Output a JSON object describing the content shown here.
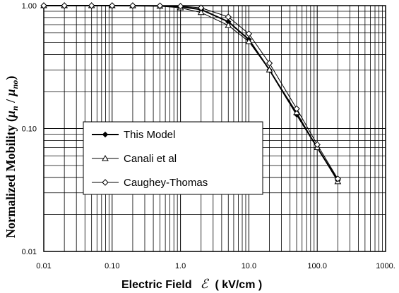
{
  "chart_data": {
    "type": "line",
    "xlabel": "Electric Field",
    "xlabel_symbol": "ℰ",
    "xlabel_unit": "( kV/cm )",
    "ylabel": "Normalized Mobility (",
    "ylabel_mu_n": "μ",
    "ylabel_sub_n": "n",
    "ylabel_slash": " / ",
    "ylabel_mu_n0": "μ",
    "ylabel_sub_n0": "no",
    "ylabel_close": ")",
    "x_scale": "log",
    "y_scale": "log",
    "xlim": [
      0.01,
      1000
    ],
    "ylim": [
      0.01,
      1.0
    ],
    "x_tick_labels": [
      "0.01",
      "0.10",
      "1.0",
      "10.0",
      "100.0",
      "1000."
    ],
    "y_tick_labels": [
      "0.01",
      "0.10",
      "1.00"
    ],
    "grid": true,
    "legend_position": "lower-left-center",
    "series": [
      {
        "name": "This Model",
        "marker": "diamond",
        "x": [
          0.01,
          0.02,
          0.05,
          0.1,
          0.2,
          0.5,
          1.0,
          2.0,
          5.0,
          10.0,
          20.0,
          50.0,
          100.0,
          200.0
        ],
        "y": [
          1.0,
          1.0,
          1.0,
          1.0,
          0.999,
          0.995,
          0.98,
          0.93,
          0.74,
          0.53,
          0.3,
          0.13,
          0.07,
          0.038
        ]
      },
      {
        "name": "Canali et al",
        "marker": "triangle",
        "x": [
          0.01,
          0.02,
          0.05,
          0.1,
          0.2,
          0.5,
          1.0,
          2.0,
          5.0,
          10.0,
          20.0,
          50.0,
          100.0,
          200.0
        ],
        "y": [
          1.0,
          1.0,
          1.0,
          1.0,
          0.998,
          0.99,
          0.96,
          0.88,
          0.69,
          0.51,
          0.3,
          0.135,
          0.07,
          0.037
        ]
      },
      {
        "name": "Caughey-Thomas",
        "marker": "open-diamond",
        "x": [
          0.01,
          0.02,
          0.05,
          0.1,
          0.2,
          0.5,
          1.0,
          2.0,
          5.0,
          10.0,
          20.0,
          50.0,
          100.0,
          200.0
        ],
        "y": [
          1.0,
          1.0,
          1.0,
          1.0,
          1.0,
          0.998,
          0.99,
          0.96,
          0.81,
          0.59,
          0.34,
          0.145,
          0.074,
          0.039
        ]
      }
    ]
  }
}
